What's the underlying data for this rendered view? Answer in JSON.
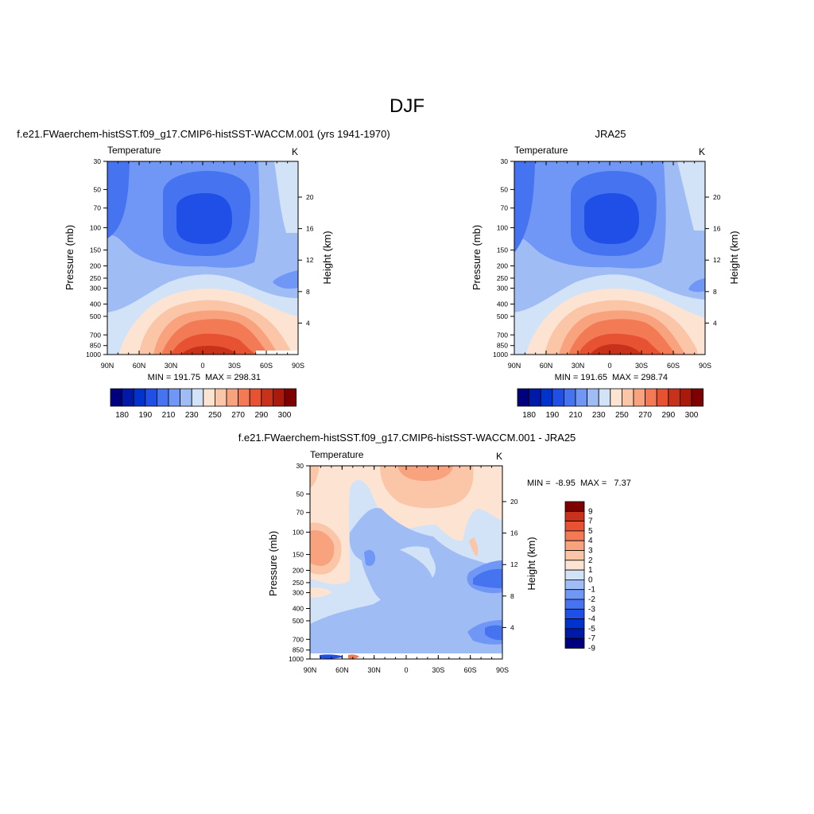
{
  "page_title": "DJF",
  "colors": {
    "contour_levels_abs": [
      180,
      185,
      190,
      195,
      200,
      205,
      210,
      215,
      220,
      225,
      230,
      235,
      240,
      245,
      250,
      255,
      260,
      265,
      270,
      275,
      280,
      285,
      290,
      295,
      300
    ],
    "abs_fill_scale": [
      "#00007f",
      "#0019a6",
      "#0033cc",
      "#1f4fe6",
      "#4673f0",
      "#7097f5",
      "#a0bcf5",
      "#d2e3f7",
      "#fde4d2",
      "#fbc5a8",
      "#f8a27e",
      "#f27b55",
      "#e65232",
      "#c8321a",
      "#a81a0c",
      "#7f0000"
    ],
    "diff_fill_scale": [
      "#00007f",
      "#0019a6",
      "#0033cc",
      "#1f4fe6",
      "#4673f0",
      "#7097f5",
      "#a0bcf5",
      "#d2e3f7",
      "#fde4d2",
      "#fbc5a8",
      "#f8a27e",
      "#f27b55",
      "#e65232",
      "#c8321a",
      "#7f0000"
    ]
  },
  "chart_data": [
    {
      "id": "model",
      "type": "heatmap",
      "title": "f.e21.FWaerchem-histSST.f09_g17.CMIP6-histSST-WACCM.001 (yrs 1941-1970)",
      "left_label": "Temperature",
      "right_label": "K",
      "xlabel": "",
      "ylabel": "Pressure (mb)",
      "y2label": "Height (km)",
      "x_ticks": [
        "90N",
        "60N",
        "30N",
        "0",
        "30S",
        "60S",
        "90S"
      ],
      "y_ticks": [
        "30",
        "50",
        "70",
        "100",
        "150",
        "200",
        "250",
        "300",
        "400",
        "500",
        "700",
        "850",
        "1000"
      ],
      "y2_ticks": [
        "20",
        "16",
        "12",
        "8",
        "4"
      ],
      "min_label": "MIN = 191.75",
      "max_label": "MAX = 298.31",
      "min": 191.75,
      "max": 298.31,
      "colorbar_labels": [
        "180",
        "190",
        "210",
        "230",
        "250",
        "270",
        "290",
        "300"
      ]
    },
    {
      "id": "obs",
      "type": "heatmap",
      "title": "JRA25",
      "left_label": "Temperature",
      "right_label": "K",
      "xlabel": "",
      "ylabel": "Pressure (mb)",
      "y2label": "Height (km)",
      "x_ticks": [
        "90N",
        "60N",
        "30N",
        "0",
        "30S",
        "60S",
        "90S"
      ],
      "y_ticks": [
        "30",
        "50",
        "70",
        "100",
        "150",
        "200",
        "250",
        "300",
        "400",
        "500",
        "700",
        "850",
        "1000"
      ],
      "y2_ticks": [
        "20",
        "16",
        "12",
        "8",
        "4"
      ],
      "min_label": "MIN = 191.65",
      "max_label": "MAX = 298.74",
      "min": 191.65,
      "max": 298.74,
      "colorbar_labels": [
        "180",
        "190",
        "210",
        "230",
        "250",
        "270",
        "290",
        "300"
      ]
    },
    {
      "id": "diff",
      "type": "heatmap",
      "title": "f.e21.FWaerchem-histSST.f09_g17.CMIP6-histSST-WACCM.001 - JRA25",
      "left_label": "Temperature",
      "right_label": "K",
      "xlabel": "",
      "ylabel": "Pressure (mb)",
      "y2label": "Height (km)",
      "x_ticks": [
        "90N",
        "60N",
        "30N",
        "0",
        "30S",
        "60S",
        "90S"
      ],
      "y_ticks": [
        "30",
        "50",
        "70",
        "100",
        "150",
        "200",
        "250",
        "300",
        "400",
        "500",
        "700",
        "850",
        "1000"
      ],
      "y2_ticks": [
        "20",
        "16",
        "12",
        "8",
        "4"
      ],
      "minmax_label": "MIN =  -8.95  MAX =   7.37",
      "min": -8.95,
      "max": 7.37,
      "colorbar_labels": [
        "9",
        "7",
        "5",
        "4",
        "3",
        "2",
        "1",
        "0",
        "-1",
        "-2",
        "-3",
        "-4",
        "-5",
        "-7",
        "-9"
      ]
    }
  ]
}
